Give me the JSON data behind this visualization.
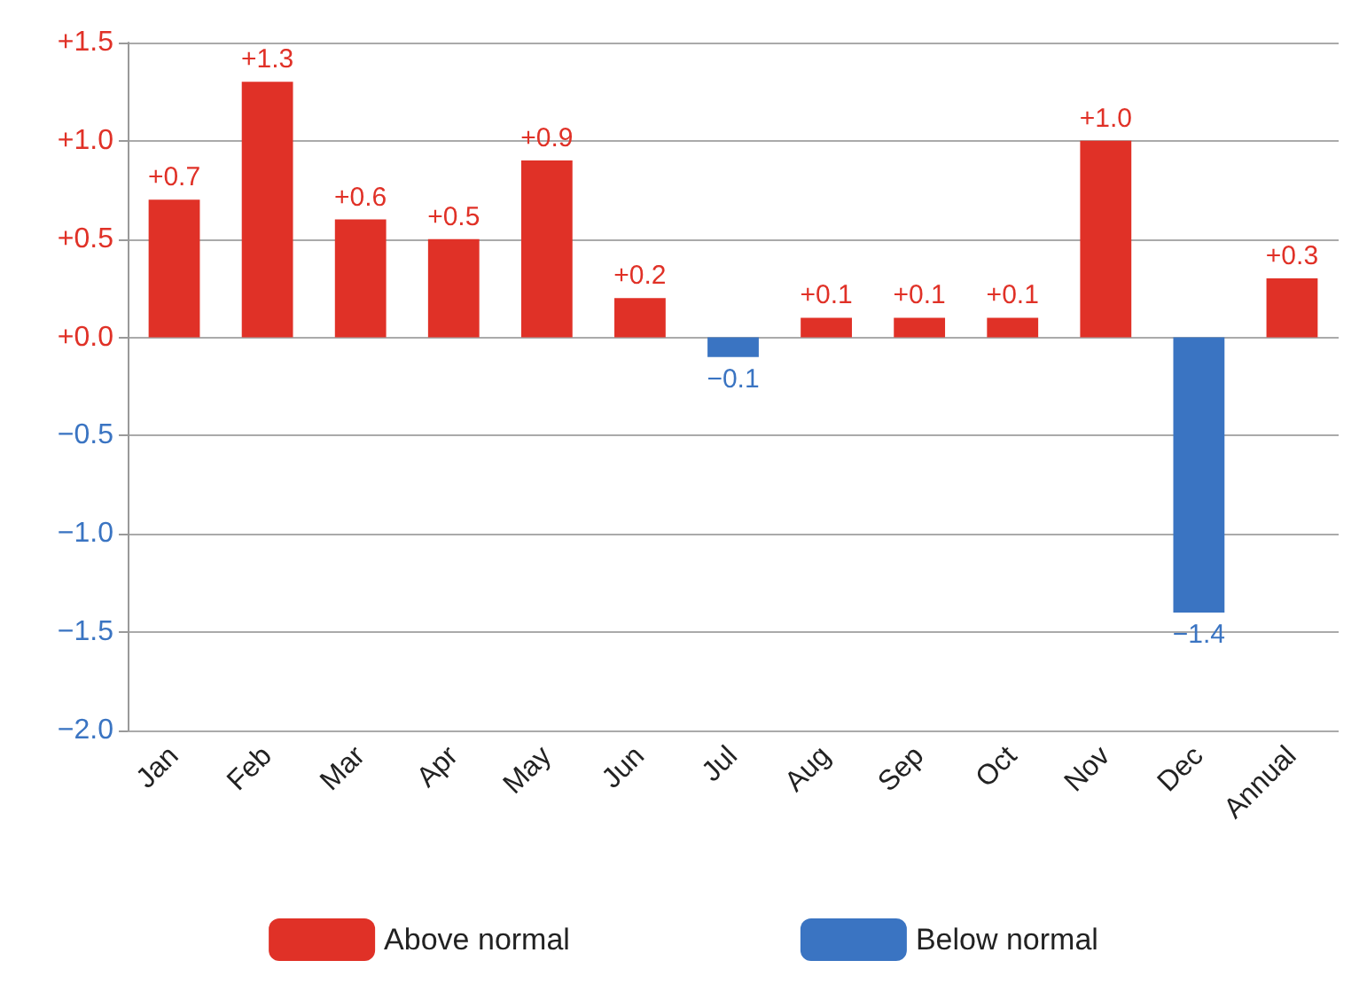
{
  "chart_data": {
    "type": "bar",
    "categories": [
      "Jan",
      "Feb",
      "Mar",
      "Apr",
      "May",
      "Jun",
      "Jul",
      "Aug",
      "Sep",
      "Oct",
      "Nov",
      "Dec",
      "Annual"
    ],
    "series": [
      {
        "name": "Above normal",
        "color": "#e03127",
        "values": [
          0.7,
          1.3,
          0.6,
          0.5,
          0.9,
          0.2,
          null,
          0.1,
          0.1,
          0.1,
          1.0,
          null,
          0.3
        ],
        "value_labels": [
          "+0.7",
          "+1.3",
          "+0.6",
          "+0.5",
          "+0.9",
          "+0.2",
          null,
          "+0.1",
          "+0.1",
          "+0.1",
          "+1.0",
          null,
          "+0.3"
        ]
      },
      {
        "name": "Below normal",
        "color": "#3a74c2",
        "values": [
          null,
          null,
          null,
          null,
          null,
          null,
          -0.1,
          null,
          null,
          null,
          null,
          -1.4,
          null
        ],
        "value_labels": [
          null,
          null,
          null,
          null,
          null,
          null,
          "−0.1",
          null,
          null,
          null,
          null,
          "−1.4",
          null
        ]
      }
    ],
    "ylim": [
      -2.0,
      1.5
    ],
    "yticks": [
      {
        "value": -2.0,
        "label": "−2.0"
      },
      {
        "value": -1.5,
        "label": "−1.5"
      },
      {
        "value": -1.0,
        "label": "−1.0"
      },
      {
        "value": -0.5,
        "label": "−0.5"
      },
      {
        "value": 0,
        "label": "+0.0"
      },
      {
        "value": 0.5,
        "label": "+0.5"
      },
      {
        "value": 1.0,
        "label": "+1.0"
      },
      {
        "value": 1.5,
        "label": "+1.5"
      }
    ],
    "grid": "y",
    "legend": "bottom"
  }
}
